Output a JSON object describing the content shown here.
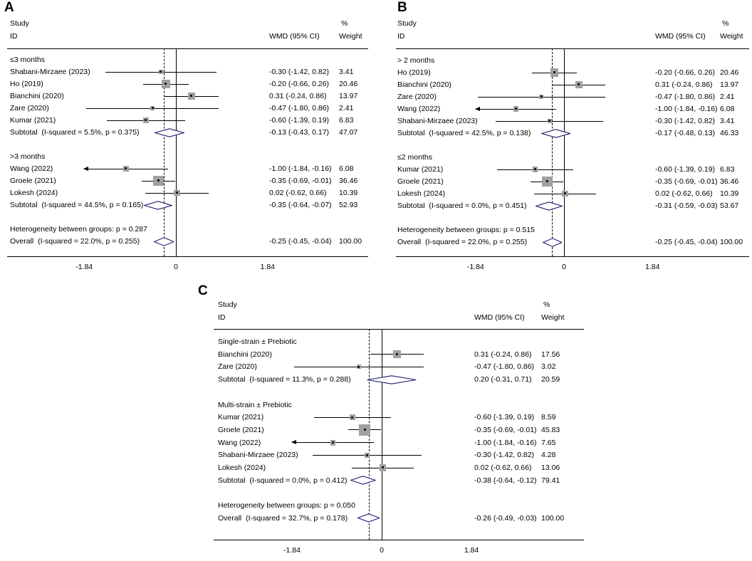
{
  "figure": {
    "background": "#ffffff"
  },
  "colors": {
    "marker_fill": "#a0a0a0",
    "marker_center": "#1a1a1a",
    "diamond_outline": "#1b1b6e",
    "line": "#000000"
  },
  "chart_data": [
    {
      "type": "forest",
      "panel_label": "A",
      "col_headers": {
        "study_line1": "Study",
        "study_line2": "ID",
        "effect": "WMD (95% CI)",
        "weight_line1": "%",
        "weight_line2": "Weight"
      },
      "xlim": [
        -1.84,
        1.84
      ],
      "null_line": 0,
      "xticks": [
        {
          "value": -1.84,
          "label": "-1.84"
        },
        {
          "value": 0,
          "label": "0"
        },
        {
          "value": 1.84,
          "label": "1.84"
        }
      ],
      "groups": [
        {
          "label": "≤3 months",
          "studies": [
            {
              "label": "Shabani-Mirzaee (2023)",
              "est": -0.3,
              "lo": -1.42,
              "hi": 0.82,
              "effect_text": "-0.30 (-1.42, 0.82)",
              "weight": "3.41"
            },
            {
              "label": "Ho (2019)",
              "est": -0.2,
              "lo": -0.66,
              "hi": 0.26,
              "effect_text": "-0.20 (-0.66, 0.26)",
              "weight": "20.46"
            },
            {
              "label": "Bianchini (2020)",
              "est": 0.31,
              "lo": -0.24,
              "hi": 0.86,
              "effect_text": "0.31 (-0.24, 0.86)",
              "weight": "13.97"
            },
            {
              "label": "Zare (2020)",
              "est": -0.47,
              "lo": -1.8,
              "hi": 0.86,
              "effect_text": "-0.47 (-1.80, 0.86)",
              "weight": "2.41"
            },
            {
              "label": "Kumar (2021)",
              "est": -0.6,
              "lo": -1.39,
              "hi": 0.19,
              "effect_text": "-0.60 (-1.39, 0.19)",
              "weight": "6.83"
            }
          ],
          "subtotal": {
            "label": "Subtotal  (I-squared = 5.5%, p = 0.375)",
            "est": -0.13,
            "lo": -0.43,
            "hi": 0.17,
            "effect_text": "-0.13 (-0.43, 0.17)",
            "weight": "47.07"
          }
        },
        {
          "label": ">3 months",
          "studies": [
            {
              "label": "Wang (2022)",
              "est": -1.0,
              "lo": -1.84,
              "hi": -0.16,
              "effect_text": "-1.00 (-1.84, -0.16)",
              "weight": "6.08",
              "arrow_left": true
            },
            {
              "label": "Groele (2021)",
              "est": -0.35,
              "lo": -0.69,
              "hi": -0.01,
              "effect_text": "-0.35 (-0.69, -0.01)",
              "weight": "36.46"
            },
            {
              "label": "Lokesh (2024)",
              "est": 0.02,
              "lo": -0.62,
              "hi": 0.66,
              "effect_text": "0.02 (-0.62, 0.66)",
              "weight": "10.39"
            }
          ],
          "subtotal": {
            "label": "Subtotal  (I-squared = 44.5%, p = 0.165)",
            "est": -0.35,
            "lo": -0.64,
            "hi": -0.07,
            "effect_text": "-0.35 (-0.64, -0.07)",
            "weight": "52.93"
          }
        }
      ],
      "heterogeneity": "Heterogeneity between groups: p = 0.287",
      "overall": {
        "label": "Overall  (I-squared = 22.0%, p = 0.255)",
        "est": -0.25,
        "lo": -0.45,
        "hi": -0.04,
        "effect_text": "-0.25 (-0.45, -0.04)",
        "weight": "100.00"
      }
    },
    {
      "type": "forest",
      "panel_label": "B",
      "col_headers": {
        "study_line1": "Study",
        "study_line2": "ID",
        "effect": "WMD (95% CI)",
        "weight_line1": "%",
        "weight_line2": "Weight"
      },
      "xlim": [
        -1.84,
        1.84
      ],
      "null_line": 0,
      "xticks": [
        {
          "value": -1.84,
          "label": "-1.84"
        },
        {
          "value": 0,
          "label": "0"
        },
        {
          "value": 1.84,
          "label": "1.84"
        }
      ],
      "groups": [
        {
          "label": "> 2 months",
          "studies": [
            {
              "label": "Ho (2019)",
              "est": -0.2,
              "lo": -0.66,
              "hi": 0.26,
              "effect_text": "-0.20 (-0.66, 0.26)",
              "weight": "20.46"
            },
            {
              "label": "Bianchini (2020)",
              "est": 0.31,
              "lo": -0.24,
              "hi": 0.86,
              "effect_text": "0.31 (-0.24, 0.86)",
              "weight": "13.97"
            },
            {
              "label": "Zare (2020)",
              "est": -0.47,
              "lo": -1.8,
              "hi": 0.86,
              "effect_text": "-0.47 (-1.80, 0.86)",
              "weight": "2.41"
            },
            {
              "label": "Wang (2022)",
              "est": -1.0,
              "lo": -1.84,
              "hi": -0.16,
              "effect_text": "-1.00 (-1.84, -0.16)",
              "weight": "6.08",
              "arrow_left": true
            },
            {
              "label": "Shabani-Mirzaee (2023)",
              "est": -0.3,
              "lo": -1.42,
              "hi": 0.82,
              "effect_text": "-0.30 (-1.42, 0.82)",
              "weight": "3.41"
            }
          ],
          "subtotal": {
            "label": "Subtotal  (I-squared = 42.5%, p = 0.138)",
            "est": -0.17,
            "lo": -0.48,
            "hi": 0.13,
            "effect_text": "-0.17 (-0.48, 0.13)",
            "weight": "46.33"
          }
        },
        {
          "label": "≤2 months",
          "studies": [
            {
              "label": "Kumar (2021)",
              "est": -0.6,
              "lo": -1.39,
              "hi": 0.19,
              "effect_text": "-0.60 (-1.39, 0.19)",
              "weight": "6.83"
            },
            {
              "label": "Groele (2021)",
              "est": -0.35,
              "lo": -0.69,
              "hi": -0.01,
              "effect_text": "-0.35 (-0.69, -0.01)",
              "weight": "36.46"
            },
            {
              "label": "Lokesh (2024)",
              "est": 0.02,
              "lo": -0.62,
              "hi": 0.66,
              "effect_text": "0.02 (-0.62, 0.66)",
              "weight": "10.39"
            }
          ],
          "subtotal": {
            "label": "Subtotal  (I-squared = 0.0%, p = 0.451)",
            "est": -0.31,
            "lo": -0.59,
            "hi": -0.03,
            "effect_text": "-0.31 (-0.59, -0.03)",
            "weight": "53.67"
          }
        }
      ],
      "heterogeneity": "Heterogeneity between groups: p = 0.515",
      "overall": {
        "label": "Overall  (I-squared = 22.0%, p = 0.255)",
        "est": -0.25,
        "lo": -0.45,
        "hi": -0.04,
        "effect_text": "-0.25 (-0.45, -0.04)",
        "weight": "100.00"
      }
    },
    {
      "type": "forest",
      "panel_label": "C",
      "col_headers": {
        "study_line1": "Study",
        "study_line2": "ID",
        "effect": "WMD (95% CI)",
        "weight_line1": "%",
        "weight_line2": "Weight"
      },
      "xlim": [
        -1.84,
        1.84
      ],
      "null_line": 0,
      "xticks": [
        {
          "value": -1.84,
          "label": "-1.84"
        },
        {
          "value": 0,
          "label": "0"
        },
        {
          "value": 1.84,
          "label": "1.84"
        }
      ],
      "groups": [
        {
          "label": "Single-strain ± Prebiotic",
          "studies": [
            {
              "label": "Bianchini (2020)",
              "est": 0.31,
              "lo": -0.24,
              "hi": 0.86,
              "effect_text": "0.31 (-0.24, 0.86)",
              "weight": "17.56"
            },
            {
              "label": "Zare (2020)",
              "est": -0.47,
              "lo": -1.8,
              "hi": 0.86,
              "effect_text": "-0.47 (-1.80, 0.86)",
              "weight": "3.02"
            }
          ],
          "subtotal": {
            "label": "Subtotal  (I-squared = 11.3%, p = 0.288)",
            "est": 0.2,
            "lo": -0.31,
            "hi": 0.71,
            "effect_text": "0.20 (-0.31, 0.71)",
            "weight": "20.59"
          }
        },
        {
          "label": "Multi-strain ± Prebiotic",
          "studies": [
            {
              "label": "Kumar (2021)",
              "est": -0.6,
              "lo": -1.39,
              "hi": 0.19,
              "effect_text": "-0.60 (-1.39, 0.19)",
              "weight": "8.59"
            },
            {
              "label": "Groele (2021)",
              "est": -0.35,
              "lo": -0.69,
              "hi": -0.01,
              "effect_text": "-0.35 (-0.69, -0.01)",
              "weight": "45.83"
            },
            {
              "label": "Wang (2022)",
              "est": -1.0,
              "lo": -1.84,
              "hi": -0.16,
              "effect_text": "-1.00 (-1.84, -0.16)",
              "weight": "7.65",
              "arrow_left": true
            },
            {
              "label": "Shabani-Mirzaee (2023)",
              "est": -0.3,
              "lo": -1.42,
              "hi": 0.82,
              "effect_text": "-0.30 (-1.42, 0.82)",
              "weight": "4.28"
            },
            {
              "label": "Lokesh (2024)",
              "est": 0.02,
              "lo": -0.62,
              "hi": 0.66,
              "effect_text": "0.02 (-0.62, 0.66)",
              "weight": "13.06"
            }
          ],
          "subtotal": {
            "label": "Subtotal  (I-squared = 0.0%, p = 0.412)",
            "est": -0.38,
            "lo": -0.64,
            "hi": -0.12,
            "effect_text": "-0.38 (-0.64, -0.12)",
            "weight": "79.41"
          }
        }
      ],
      "heterogeneity": "Heterogeneity between groups: p = 0.050",
      "overall": {
        "label": "Overall  (I-squared = 32.7%, p = 0.178)",
        "est": -0.26,
        "lo": -0.49,
        "hi": -0.03,
        "effect_text": "-0.26 (-0.49, -0.03)",
        "weight": "100.00"
      }
    }
  ]
}
